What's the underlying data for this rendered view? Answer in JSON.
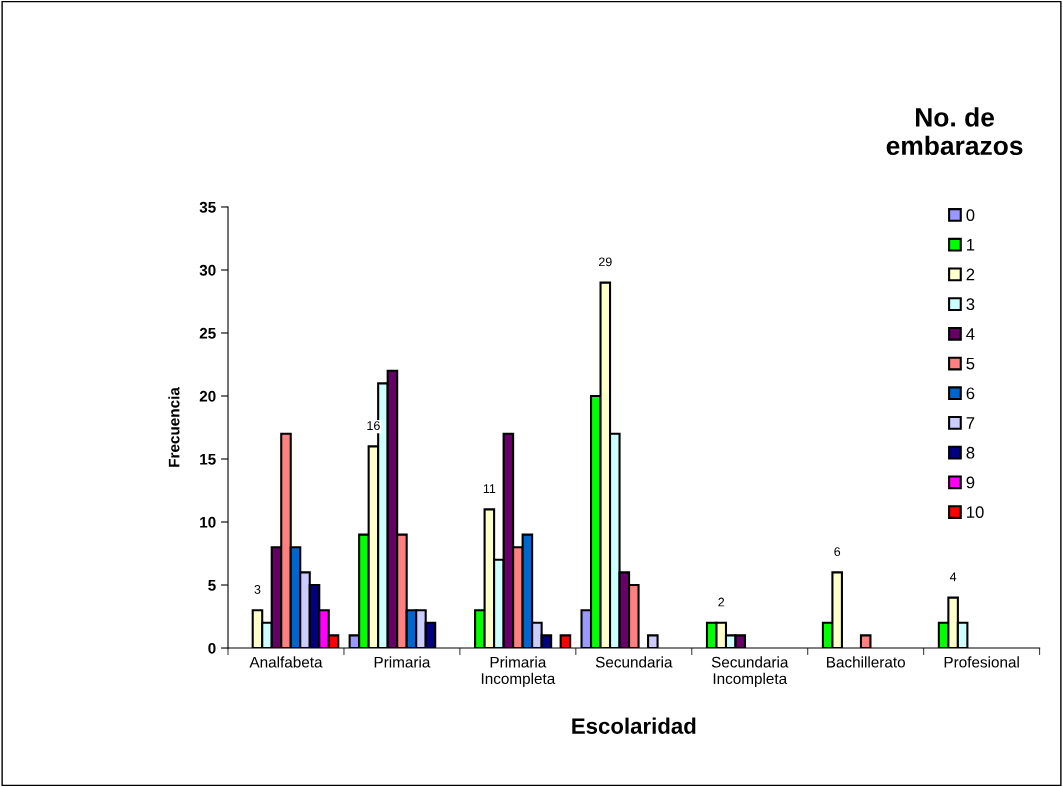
{
  "chart_data": {
    "type": "bar",
    "xlabel": "Escolaridad",
    "ylabel": "Frecuencia",
    "legend_title": "No. de embarazos",
    "categories": [
      "Analfabeta",
      "Primaria",
      "Primaria\nIncompleta",
      "Secundaria",
      "Secundaria\nIncompleta",
      "Bachillerato",
      "Profesional"
    ],
    "ylim": [
      0,
      35
    ],
    "yticks": [
      0,
      5,
      10,
      15,
      20,
      25,
      30,
      35
    ],
    "grid": false,
    "legend": "right",
    "series": [
      {
        "name": "0",
        "color": "#9999ff",
        "values": [
          null,
          1,
          null,
          3,
          null,
          null,
          null
        ]
      },
      {
        "name": "1",
        "color": "#00ff00",
        "values": [
          null,
          9,
          3,
          20,
          2,
          2,
          2
        ]
      },
      {
        "name": "2",
        "color": "#ffffcc",
        "values": [
          3,
          16,
          11,
          29,
          2,
          6,
          4
        ],
        "value_labels": [
          "3",
          "16",
          "11",
          "29",
          "2",
          "6",
          "4"
        ]
      },
      {
        "name": "3",
        "color": "#ccffff",
        "values": [
          2,
          21,
          7,
          17,
          1,
          null,
          2
        ]
      },
      {
        "name": "4",
        "color": "#660066",
        "values": [
          8,
          22,
          17,
          6,
          1,
          null,
          null
        ]
      },
      {
        "name": "5",
        "color": "#ff8080",
        "values": [
          17,
          9,
          8,
          5,
          null,
          1,
          null
        ]
      },
      {
        "name": "6",
        "color": "#0066cc",
        "values": [
          8,
          3,
          9,
          null,
          null,
          null,
          null
        ]
      },
      {
        "name": "7",
        "color": "#ccccff",
        "values": [
          6,
          3,
          2,
          1,
          null,
          null,
          null
        ]
      },
      {
        "name": "8",
        "color": "#000080",
        "values": [
          5,
          2,
          1,
          null,
          null,
          null,
          null
        ]
      },
      {
        "name": "9",
        "color": "#ff00ff",
        "values": [
          3,
          null,
          null,
          null,
          null,
          null,
          null
        ]
      },
      {
        "name": "10",
        "color": "#ff0000",
        "values": [
          1,
          null,
          1,
          null,
          null,
          null,
          null
        ]
      }
    ]
  }
}
